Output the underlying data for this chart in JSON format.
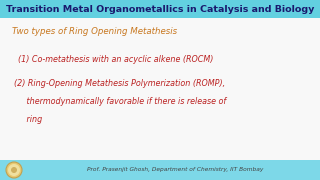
{
  "title": "Transition Metal Organometallics in Catalysis and Biology",
  "title_bg": "#62d0e0",
  "title_color": "#1a1a6e",
  "bg_color": "#f8f8f8",
  "line1": "Two types of Ring Opening Metathesis",
  "line1_color": "#c87820",
  "line2": "(1) Co-metathesis with an acyclic alkene (ROCM)",
  "line2_color": "#bb2222",
  "line3": "(2) Ring-Opening Metathesis Polymerization (ROMP),",
  "line3_color": "#bb2222",
  "line4": "     thermodynamically favorable if there is release of",
  "line4_color": "#bb2222",
  "line5": "     ring",
  "line5_color": "#bb2222",
  "footer": "Prof. Prasenjit Ghosh, Department of Chemistry, IIT Bombay",
  "footer_color": "#444444",
  "footer_bg": "#7dd8e8"
}
